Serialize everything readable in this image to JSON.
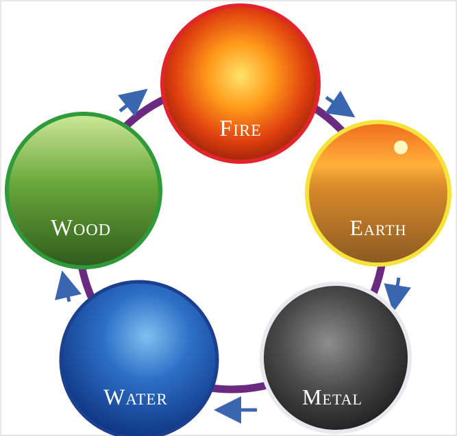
{
  "nodes": [
    {
      "label": "Fire"
    },
    {
      "label": "Earth"
    },
    {
      "label": "Metal"
    },
    {
      "label": "Water"
    },
    {
      "label": "Wood"
    }
  ]
}
